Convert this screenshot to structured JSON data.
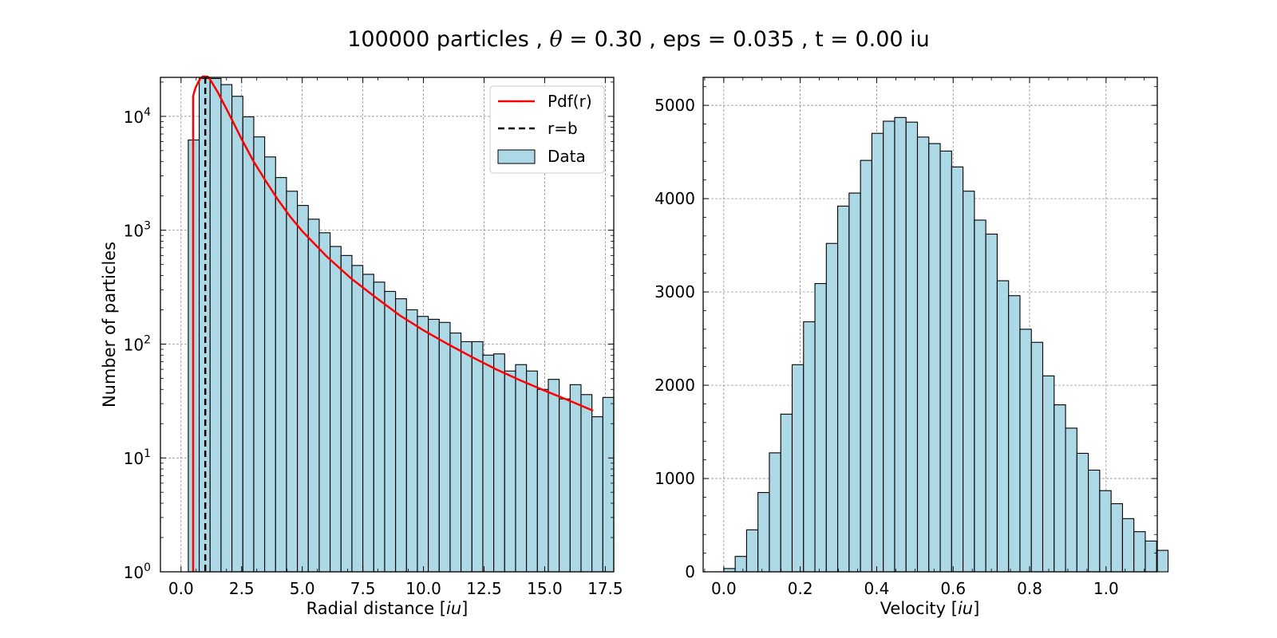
{
  "figure": {
    "title_parts": [
      "100000 particles , ",
      "θ",
      " = 0.30 , eps = 0.035 , t = 0.00 iu"
    ]
  },
  "colors": {
    "bar_fill": "#add8e6",
    "bar_edge": "#000000",
    "pdf_line": "#ff0000",
    "rb_line": "#000000",
    "grid": "#808080"
  },
  "chart_data": [
    {
      "type": "bar",
      "scale_y": "log",
      "xlabel_parts": [
        "Radial distance [",
        "iu",
        "]"
      ],
      "ylabel": "Number of particles",
      "xlim": [
        -0.85,
        17.85
      ],
      "ylim": [
        1,
        22000
      ],
      "xticks": [
        0.0,
        2.5,
        5.0,
        7.5,
        10.0,
        12.5,
        15.0,
        17.5
      ],
      "xtick_labels": [
        "0.0",
        "2.5",
        "5.0",
        "7.5",
        "10.0",
        "12.5",
        "15.0",
        "17.5"
      ],
      "yticks": [
        1,
        10,
        100,
        1000,
        10000
      ],
      "ytick_labels": [
        {
          "base": "10",
          "exp": "0"
        },
        {
          "base": "10",
          "exp": "1"
        },
        {
          "base": "10",
          "exp": "2"
        },
        {
          "base": "10",
          "exp": "3"
        },
        {
          "base": "10",
          "exp": "4"
        }
      ],
      "grid": true,
      "legend_position": "top-right",
      "legend": [
        {
          "kind": "line",
          "style": "solid",
          "label": "Pdf(r)"
        },
        {
          "kind": "line",
          "style": "dashed",
          "label": "r=b"
        },
        {
          "kind": "patch",
          "label": "Data"
        }
      ],
      "bin_start": 0.3,
      "bin_width": 0.45,
      "values": [
        6200,
        21500,
        21500,
        19000,
        15000,
        9900,
        6600,
        4400,
        2900,
        2200,
        1650,
        1250,
        950,
        720,
        600,
        490,
        410,
        350,
        290,
        250,
        200,
        175,
        165,
        155,
        125,
        105,
        105,
        80,
        82,
        58,
        66,
        58,
        40,
        49,
        33,
        44,
        36,
        23,
        34
      ],
      "pdf": {
        "x": [
          0.5,
          0.5,
          0.55,
          0.6,
          0.7,
          0.8,
          0.9,
          1.0,
          1.1,
          1.2,
          1.5,
          2.0,
          2.5,
          3.0,
          3.5,
          4.0,
          4.5,
          5.0,
          6.0,
          7.0,
          8.0,
          9.0,
          10.0,
          11.0,
          12.0,
          13.0,
          14.0,
          15.0,
          16.0,
          17.0
        ],
        "y": [
          1,
          15000,
          16500,
          17800,
          19800,
          21500,
          22500,
          22800,
          22300,
          21000,
          16500,
          10300,
          6300,
          4000,
          2700,
          1850,
          1320,
          980,
          590,
          380,
          260,
          180,
          132,
          100,
          77,
          60,
          48,
          39,
          32,
          26
        ]
      },
      "r_equals_b": 1.0
    },
    {
      "type": "bar",
      "xlabel_parts": [
        "Velocity [",
        "iu",
        "]"
      ],
      "ylabel": "",
      "xlim": [
        -0.054,
        1.134
      ],
      "ylim": [
        0,
        5300
      ],
      "xticks": [
        0.0,
        0.2,
        0.4,
        0.6,
        0.8,
        1.0
      ],
      "xtick_labels": [
        "0.0",
        "0.2",
        "0.4",
        "0.6",
        "0.8",
        "1.0"
      ],
      "yticks": [
        0,
        1000,
        2000,
        3000,
        4000,
        5000
      ],
      "ytick_labels": [
        "0",
        "1000",
        "2000",
        "3000",
        "4000",
        "5000"
      ],
      "grid": true,
      "bin_start": 0.0,
      "bin_width": 0.0298,
      "values": [
        35,
        165,
        450,
        850,
        1275,
        1690,
        2220,
        2680,
        3090,
        3520,
        3920,
        4060,
        4410,
        4700,
        4830,
        4870,
        4820,
        4660,
        4590,
        4510,
        4340,
        4080,
        3770,
        3620,
        3120,
        2960,
        2600,
        2460,
        2100,
        1790,
        1540,
        1270,
        1090,
        870,
        730,
        570,
        430,
        330,
        230
      ]
    }
  ]
}
